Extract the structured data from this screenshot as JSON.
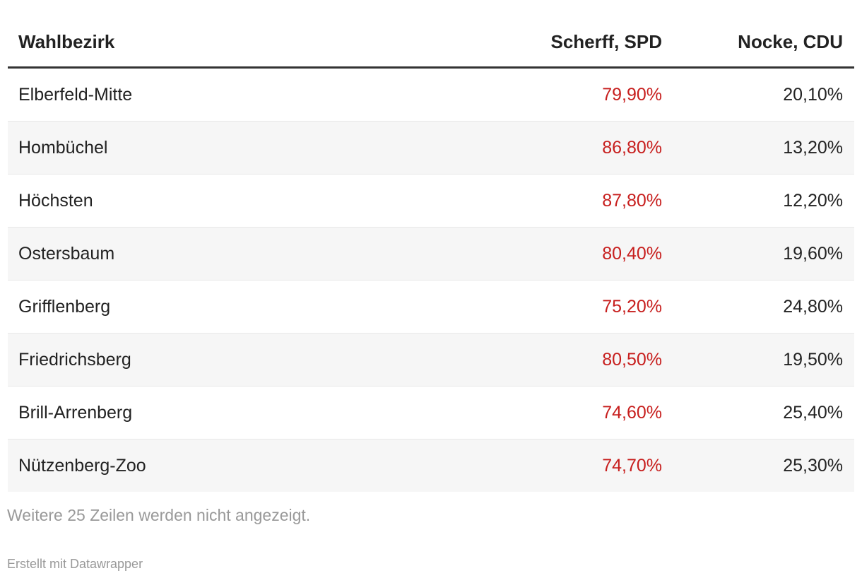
{
  "table": {
    "columns": [
      {
        "label": "Wahlbezirk"
      },
      {
        "label": "Scherff, SPD"
      },
      {
        "label": "Nocke, CDU"
      }
    ],
    "rows": [
      {
        "district": "Elberfeld-Mitte",
        "spd": "79,90%",
        "cdu": "20,10%"
      },
      {
        "district": "Hombüchel",
        "spd": "86,80%",
        "cdu": "13,20%"
      },
      {
        "district": "Höchsten",
        "spd": "87,80%",
        "cdu": "12,20%"
      },
      {
        "district": "Ostersbaum",
        "spd": "80,40%",
        "cdu": "19,60%"
      },
      {
        "district": "Grifflenberg",
        "spd": "75,20%",
        "cdu": "24,80%"
      },
      {
        "district": "Friedrichsberg",
        "spd": "80,50%",
        "cdu": "19,50%"
      },
      {
        "district": "Brill-Arrenberg",
        "spd": "74,60%",
        "cdu": "25,40%"
      },
      {
        "district": "Nützenberg-Zoo",
        "spd": "74,70%",
        "cdu": "25,30%"
      }
    ],
    "note": "Weitere 25 Zeilen werden nicht angezeigt.",
    "attribution": "Erstellt mit Datawrapper"
  },
  "colors": {
    "spd_value": "#c71e1d",
    "text": "#222222",
    "header_rule": "#333333",
    "stripe": "#f6f6f6",
    "row_divider": "#e8e8e8",
    "muted": "#999999"
  },
  "chart_data": {
    "type": "table",
    "title": "",
    "columns": [
      "Wahlbezirk",
      "Scherff, SPD",
      "Nocke, CDU"
    ],
    "rows": [
      [
        "Elberfeld-Mitte",
        79.9,
        20.1
      ],
      [
        "Hombüchel",
        86.8,
        13.2
      ],
      [
        "Höchsten",
        87.8,
        12.2
      ],
      [
        "Ostersbaum",
        80.4,
        19.6
      ],
      [
        "Grifflenberg",
        75.2,
        24.8
      ],
      [
        "Friedrichsberg",
        80.5,
        19.5
      ],
      [
        "Brill-Arrenberg",
        74.6,
        25.4
      ],
      [
        "Nützenberg-Zoo",
        74.7,
        25.3
      ]
    ],
    "value_unit": "%",
    "hidden_rows_note": "Weitere 25 Zeilen werden nicht angezeigt.",
    "layout_hints": {
      "striped": true,
      "spd_column_color": "#c71e1d",
      "grid": "off"
    }
  }
}
